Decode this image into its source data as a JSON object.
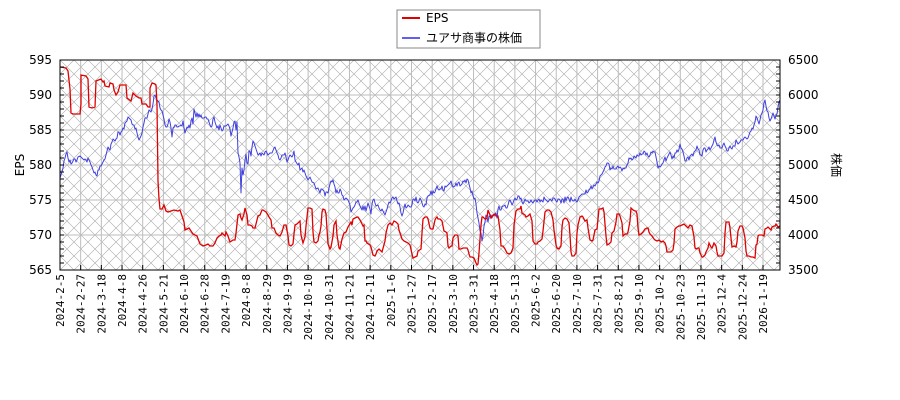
{
  "legend": {
    "items": [
      {
        "label": "EPS",
        "color": "#e00000"
      },
      {
        "label": "ユアサ商事の株価",
        "color": "#4040e0"
      }
    ]
  },
  "axes": {
    "left_label": "EPS",
    "right_label": "株価",
    "left_ticks": [
      "565",
      "570",
      "575",
      "580",
      "585",
      "590",
      "595"
    ],
    "right_ticks": [
      "3500",
      "4000",
      "4500",
      "5000",
      "5500",
      "6000",
      "6500"
    ]
  },
  "chart_data": {
    "type": "line",
    "title": "",
    "xlabel": "",
    "ylabel": "EPS",
    "y2label": "株価",
    "ylim": [
      565,
      595
    ],
    "y2lim": [
      3500,
      6500
    ],
    "grid": true,
    "legend_position": "top-center",
    "x_tick_labels": [
      "2024-2-5",
      "2024-2-27",
      "2024-3-18",
      "2024-4-8",
      "2024-4-26",
      "2024-5-21",
      "2024-6-10",
      "2024-6-28",
      "2024-7-19",
      "2024-8-8",
      "2024-8-29",
      "2024-9-19",
      "2024-10-10",
      "2024-10-31",
      "2024-11-21",
      "2024-12-11",
      "2025-1-6",
      "2025-1-27",
      "2025-2-17",
      "2025-3-10",
      "2025-3-31",
      "2025-4-18",
      "2025-5-13",
      "2025-6-2",
      "2025-6-20",
      "2025-7-10",
      "2025-7-31",
      "2025-8-21",
      "2025-9-10",
      "2025-10-2",
      "2025-10-23",
      "2025-11-13",
      "2025-12-4",
      "2025-12-24",
      "2026-1-19"
    ],
    "series": [
      {
        "name": "EPS",
        "axis": "left",
        "color": "#e00000",
        "x": [
          "2024-2-5",
          "2024-2-27",
          "2024-3-18",
          "2024-4-8",
          "2024-4-26",
          "2024-5-21",
          "2024-6-10",
          "2024-6-28",
          "2024-7-19",
          "2024-8-8",
          "2024-8-29",
          "2024-9-19",
          "2024-10-10",
          "2024-10-31",
          "2024-11-21",
          "2024-12-11",
          "2025-1-6",
          "2025-1-27",
          "2025-2-17",
          "2025-3-10",
          "2025-3-31",
          "2025-4-18",
          "2025-5-13",
          "2025-6-2",
          "2025-6-20",
          "2025-7-10",
          "2025-7-31",
          "2025-8-21",
          "2025-9-10",
          "2025-10-2",
          "2025-10-23",
          "2025-11-13",
          "2025-12-4",
          "2025-12-24",
          "2026-1-19"
        ],
        "values": [
          594,
          587.5,
          591.5,
          590,
          589,
          573,
          573,
          568.5,
          570.5,
          571,
          572,
          569.5,
          573.5,
          568,
          572.5,
          569,
          571,
          569,
          572.5,
          571,
          569.5,
          567,
          572,
          569,
          573.5,
          567,
          573,
          568,
          571.5,
          569,
          566.5,
          571.5,
          568,
          569,
          571.5
        ]
      },
      {
        "name": "ユアサ商事の株価",
        "axis": "right",
        "color": "#4040e0",
        "x": [
          "2024-2-5",
          "2024-2-27",
          "2024-3-18",
          "2024-4-8",
          "2024-4-26",
          "2024-5-21",
          "2024-6-10",
          "2024-6-28",
          "2024-7-19",
          "2024-8-8",
          "2024-8-29",
          "2024-9-19",
          "2024-10-10",
          "2024-10-31",
          "2024-11-21",
          "2024-12-11",
          "2025-1-6",
          "2025-1-27",
          "2025-2-17",
          "2025-3-10",
          "2025-3-31",
          "2025-4-18",
          "2025-5-13",
          "2025-6-2",
          "2025-6-20",
          "2025-7-10",
          "2025-7-31",
          "2025-8-21",
          "2025-9-10",
          "2025-10-2",
          "2025-10-23",
          "2025-11-13",
          "2025-12-4",
          "2025-12-24",
          "2026-1-19"
        ],
        "values": [
          4850,
          5050,
          4900,
          5400,
          5750,
          5600,
          5650,
          5700,
          5550,
          5100,
          5150,
          5050,
          4900,
          4750,
          4550,
          4450,
          4300,
          4450,
          4500,
          4700,
          4750,
          4000,
          4400,
          4550,
          4500,
          4600,
          4850,
          5000,
          5050,
          5050,
          5200,
          5250,
          5300,
          5400,
          5800
        ]
      }
    ]
  },
  "plot_paths": {
    "eps": "60,67 66,68 68,71 70,89 71,113 73,114 78,114 80,114 81,104 81,75 86,76 88,79 89,107 92,108 95,107 96,81 101,79 103,82 104,81 105,86 109,87 110,83 113,84 114,90 116,95 118,92 120,85 124,85 126,85 127,98 131,101 133,93 136,96 139,98 141,98 142,104 146,104 148,107 150,107 150,88 152,83 155,84 156,85 157,105 158,181 159,199 160,209 162,209 164,205 166,211 168,212 171,211 174,210 178,211 180,210 182,216 184,222 185,230 189,228 191,231 193,234 197,236 200,244 203,246 206,245 208,244 210,246 213,246 215,243 217,238 219,236 221,235 222,233 225,236 226,232 228,236 230,242 233,240 235,240 236,233 238,215 240,214 241,218 242,220 244,214 245,208 247,215 248,225 250,225 252,226 253,228 255,228 258,216 260,215 262,210 263,210 266,212 268,215 269,217 271,220 272,228 274,228 276,233 278,235 280,236 282,232 284,225 286,225 288,236 289,245 291,246 293,244 294,234 295,225 297,224 300,221 301,235 303,243 305,237 306,226 308,208 310,208 312,209 313,232 314,242 316,243 318,241 319,235 320,232 321,226 322,212 323,209 325,210 326,214 328,244 330,249 331,247 333,236 334,225 336,221 337,235 339,248 340,249 342,239 344,233 346,232 348,227 351,222 352,225 353,219 355,218 357,217 358,217 360,220 362,224 363,226 364,225 365,241 366,241 367,243 370,245 371,247 373,255 375,256 376,254 377,251 379,249 381,251 382,252 385,241 386,233 388,225 390,223 392,225 394,221 396,222 398,224 399,230 401,236 402,239 404,241 406,242 408,243 410,245 412,254 413,258 415,257 417,256 418,251 421,249 422,233 423,219 425,217 427,217 428,219 430,228 431,229 433,229 435,220 436,218 437,217 438,219 440,219 442,221 444,231 446,232 447,233 448,246 449,248 451,246 452,246 453,238 455,235 457,235 458,236 459,249 461,249 463,248 465,248 467,248 468,250 469,254 470,257 472,257 474,258 476,263 477,265 478,264 479,253 481,225 482,217 483,217 485,219 486,219 487,218 488,210 490,215 491,218 493,215 495,214 496,216 498,216 500,230 501,246 503,246 505,249 507,253 509,254 511,253 513,248 514,225 516,211 518,209 520,209 521,206 522,213 525,215 526,217 528,216 530,214 532,221 533,241 535,244 537,244 538,242 540,241 542,239 543,231 545,212 547,210 549,210 551,212 553,220 554,230 556,245 557,248 559,249 561,246 562,227 563,220 565,218 567,219 569,223 570,235 571,252 572,256 574,256 576,253 577,233 578,225 580,217 582,216 583,217 585,221 587,220 588,228 590,240 592,241 593,240 595,230 597,229 599,209 601,209 603,208 604,212 606,236 607,245 609,244 611,242 612,233 614,231 616,222 617,214 619,214 620,216 622,223 623,236 625,234 627,234 628,232 630,221 631,208 633,210 635,211 636,211 637,214 638,228 639,235 641,234 643,232 645,229 647,228 648,228 649,232 650,234 652,236 654,239 655,240 657,241 659,240 661,242 663,241 665,243 666,246 667,252 669,252 671,252 673,250 674,243 675,229 677,227 679,226 680,226 682,225 684,224 686,226 688,228 690,225 692,226 694,237 695,248 696,249 698,248 699,248 700,253 702,257 703,257 705,255 706,252 708,248 709,243 711,247 712,248 714,243 716,246 717,252 718,256 720,256 722,256 724,253 725,233 726,222 727,222 729,222 730,228 731,238 732,247 734,246 736,247 737,242 738,231 740,226 742,226 743,228 745,238 746,251 747,256 749,256 751,257 753,257 755,258 756,245 757,244 758,236 759,235 762,235 764,236 765,229 767,228 768,227 770,229 771,230 772,227 774,226 775,226 776,224 778,227 780,226",
    "price": "60,178 61,175 62,172 63,168 64,161 65,158 66,154 67,152 68,158 69,162 70,160 71,164 72,163 74,159 75,159 76,162 77,160 78,157 80,156 82,158 84,160 85,159 86,160 87,162 88,158 89,160 90,162 91,165 92,167 93,170 94,173 95,172 96,175 97,176 98,170 99,170 100,166 101,166 103,162 104,160 105,159 107,151 108,147 109,149 110,150 111,144 112,142 113,139 115,141 116,139 117,138 118,132 119,132 120,135 121,132 122,131 123,128 124,129 125,123 126,122 127,121 128,117 130,119 131,120 132,124 133,125 134,125 135,129 136,128 137,133 138,137 139,140 140,138 141,136 142,133 143,127 144,123 145,118 146,118 147,118 148,114 149,110 150,111 151,112 152,109 153,104 154,96 155,95 156,98 157,100 158,101 159,102 160,108 161,110 162,111 163,115 164,119 165,125 166,127 167,127 168,124 169,119 170,122 171,128 172,137 173,128 174,127 175,125 176,125 177,127 178,127 179,126 180,126 181,125 182,126 183,121 184,128 185,133 186,130 187,127 188,128 189,125 190,128 191,121 192,118 193,124 194,109 195,113 196,117 197,113 198,117 199,114 200,117 201,115 202,118 203,118 204,118 205,117 206,117 207,119 208,119 209,122 210,125 211,127 212,126 213,119 214,117 215,122 216,125 217,128 218,126 219,130 220,125 221,128 222,131 223,130 224,126 225,126 226,126 227,125 228,124 229,126 230,129 231,136 232,132 233,128 234,122 235,121 236,130 237,122 238,153 239,157 240,163 241,193 242,168 243,175 244,170 245,160 246,154 247,163 248,164 249,151 250,151 251,156 252,147 253,141 254,143 255,146 256,149 257,152 258,155 260,153 261,156 262,153 264,155 265,152 266,151 268,155 270,153 272,153 274,148 275,147 276,150 277,153 278,155 279,159 280,160 281,158 282,155 284,155 285,153 286,157 287,162 288,160 289,157 290,155 292,157 293,155 294,151 295,160 296,162 298,165 299,163 300,170 302,168 303,172 304,170 306,176 307,178 308,180 310,177 312,182 314,183 316,189 318,188 320,193 321,189 322,189 324,191 325,196 326,192 327,192 328,193 329,188 330,184 331,181 332,182 333,180 334,184 335,187 336,193 337,190 338,193 339,193 340,189 341,191 342,195 343,196 344,200 346,198 348,200 350,205 351,212 352,210 353,208 354,207 355,205 356,202 357,202 358,200 359,203 360,206 362,210 363,206 364,210 365,206 366,211 367,207 368,203 369,206 370,209 371,214 372,204 373,200 374,199 375,203 376,206 378,205 379,208 380,210 381,211 382,209 383,211 384,213 385,215 386,212 387,209 388,205 389,202 390,203 391,201 392,198 393,197 394,199 396,197 397,201 398,204 399,203 400,207 401,213 402,216 403,213 404,208 405,204 406,208 407,207 408,205 409,206 410,207 411,207 412,205 413,199 414,199 415,201 416,197 417,202 418,203 419,201 420,198 421,200 422,203 423,206 424,207 425,204 426,205 427,198 428,196 430,195 431,191 432,195 433,191 434,193 435,192 436,189 437,186 438,189 439,190 440,189 441,189 442,186 443,190 444,191 445,186 446,187 448,185 450,183 451,181 452,185 453,187 455,186 456,183 457,186 458,183 459,182 460,186 462,184 463,181 464,182 465,180 466,183 467,179 468,180 469,184 470,188 471,193 472,191 473,196 474,199 475,198 476,204 477,213 478,218 479,223 480,231 481,233 482,241 483,236 484,226 485,222 486,215 487,217 488,222 489,216 490,217 491,215 492,218 493,215 494,216 495,214 496,213 497,218 498,209 499,206 500,210 501,210 502,207 503,206 504,206 505,205 506,208 507,208 508,205 509,201 510,200 511,202 512,205 513,203 514,200 515,198 516,200 517,199 518,196 519,196 520,199 521,198 522,202 523,204 524,202 525,199 526,201 527,201 528,201 529,203 530,202 531,200 532,202 533,203 534,201 535,200 536,200 537,202 538,200 539,199 540,202 541,200 542,201 543,202 544,197 545,199 546,200 548,202 550,199 551,200 552,201 553,198 554,198 555,199 556,201 557,202 558,199 559,199 560,200 561,203 562,199 563,199 564,203 565,197 566,201 567,198 568,197 569,199 570,202 571,197 572,200 573,201 574,201 575,199 576,201 577,202 578,200 579,197 580,196 581,195 582,194 583,194 585,194 586,190 587,193 588,192 589,190 590,189 591,186 592,189 593,187 594,185 595,186 596,184 597,182 598,183 599,181 600,176 601,175 602,174 603,172 604,170 605,167 606,166 607,163 608,163 609,164 610,170 611,168 612,169 613,166 614,169 615,169 616,169 617,167 618,166 619,168 620,167 621,168 622,171 623,168 624,169 625,168 626,168 627,165 628,163 629,158 630,159 631,158 632,160 633,159 634,156 635,157 636,158 637,155 638,156 639,156 640,153 641,155 642,154 643,154 644,151 645,152 646,155 647,153 648,156 649,157 650,155 651,152 652,153 653,151 654,152 655,152 656,157 657,162 658,168 659,166 660,167 661,166 662,164 663,163 664,160 665,157 666,161 667,158 668,156 669,154 670,152 671,155 672,159 673,156 674,158 675,153 676,153 677,150 678,152 679,149 680,144 681,148 682,149 683,152 684,156 685,161 686,161 687,158 688,157 689,160 690,156 691,155 692,154 693,156 694,152 695,151 696,150 697,146 698,149 699,150 700,155 701,155 702,156 703,150 704,148 705,148 706,152 707,150 708,149 709,147 710,150 711,148 712,146 713,144 714,140 715,137 716,142 717,145 718,146 719,145 720,148 721,148 722,148 723,145 724,143 725,146 726,148 727,151 728,151 729,148 730,146 731,148 732,149 733,146 734,146 735,146 736,140 737,142 738,144 739,143 740,142 741,140 742,140 743,140 744,138 745,137 746,138 747,139 748,138 749,135 750,132 751,131 752,128 753,129 754,125 755,122 756,116 757,118 758,121 759,124 760,120 761,115 762,113 763,110 764,103 765,100 766,106 767,111 768,112 769,118 770,121 771,119 772,116 773,113 774,116 775,119 776,115 777,114 778,107 779,102 780,100"
  }
}
